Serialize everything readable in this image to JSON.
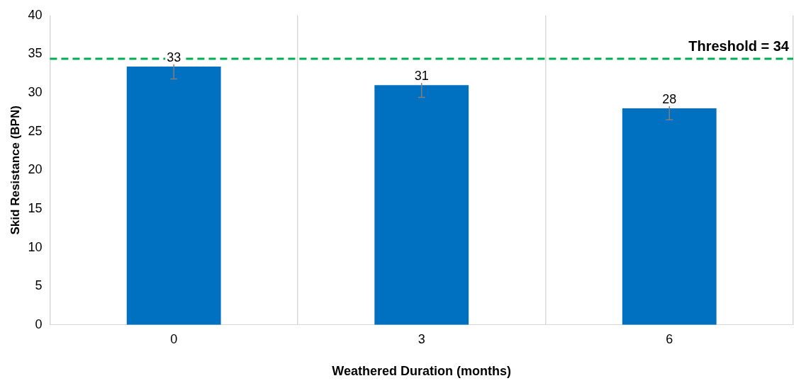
{
  "chart_data": {
    "type": "bar",
    "xlabel": "Weathered Duration (months)",
    "ylabel": "Skid Resistance (BPN)",
    "categories": [
      "0",
      "3",
      "6"
    ],
    "series": [
      {
        "color": "#0070c0",
        "values": [
          33.4,
          31,
          28
        ],
        "errors": [
          1.6,
          1.6,
          1.5
        ],
        "value_labels": [
          "33",
          "31",
          "28"
        ]
      }
    ],
    "ylim": [
      0,
      40
    ],
    "yticks": [
      0,
      5,
      10,
      15,
      20,
      25,
      30,
      35,
      40
    ],
    "grid": "x",
    "ref_lines": [
      {
        "axis": "y",
        "value": 34.4,
        "label": "Threshold = 34",
        "color": "#00b050",
        "line_style": "dashed"
      }
    ],
    "legend": false
  }
}
